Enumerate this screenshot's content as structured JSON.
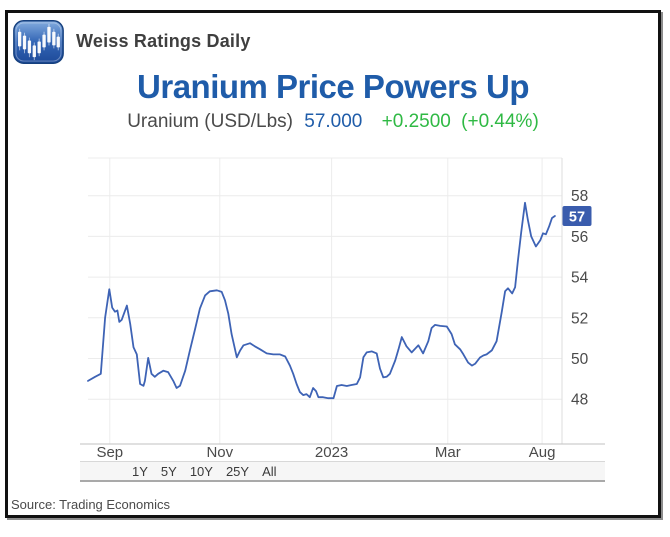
{
  "header": {
    "brand": "Weiss Ratings Daily"
  },
  "title": "Uranium Price Powers Up",
  "quote": {
    "instrument": "Uranium (USD/Lbs)",
    "price": "57.000",
    "change": "+0.2500",
    "change_percent": "(+0.44%)"
  },
  "chart_data": {
    "type": "line",
    "title": "Uranium Price Powers Up",
    "series_name": "Uranium (USD/Lbs)",
    "unit": "USD/Lbs",
    "last_price": 57.0,
    "price_marker": {
      "label": "57",
      "value": 57
    },
    "ylim": [
      45.8,
      59.85
    ],
    "yticks": [
      48,
      50,
      52,
      54,
      56,
      58
    ],
    "grid": true,
    "legend": "none",
    "x_range_note": "Aug 2022 - Aug 2023",
    "xticks": [
      {
        "label": "Sep",
        "pos": 0.046
      },
      {
        "label": "Nov",
        "pos": 0.278
      },
      {
        "label": "2023",
        "pos": 0.514
      },
      {
        "label": "Mar",
        "pos": 0.759
      },
      {
        "label": "Aug",
        "pos": 0.958
      }
    ],
    "points": [
      [
        0.0,
        48.9
      ],
      [
        0.015,
        49.1
      ],
      [
        0.027,
        49.25
      ],
      [
        0.036,
        52.0
      ],
      [
        0.045,
        53.4
      ],
      [
        0.051,
        52.5
      ],
      [
        0.057,
        52.3
      ],
      [
        0.062,
        52.36
      ],
      [
        0.066,
        51.8
      ],
      [
        0.071,
        51.9
      ],
      [
        0.082,
        52.6
      ],
      [
        0.089,
        51.7
      ],
      [
        0.096,
        50.55
      ],
      [
        0.103,
        50.2
      ],
      [
        0.11,
        48.75
      ],
      [
        0.117,
        48.66
      ],
      [
        0.12,
        48.9
      ],
      [
        0.127,
        50.03
      ],
      [
        0.134,
        49.25
      ],
      [
        0.141,
        49.1
      ],
      [
        0.148,
        49.25
      ],
      [
        0.159,
        49.4
      ],
      [
        0.169,
        49.33
      ],
      [
        0.18,
        48.9
      ],
      [
        0.187,
        48.55
      ],
      [
        0.194,
        48.66
      ],
      [
        0.205,
        49.4
      ],
      [
        0.215,
        50.4
      ],
      [
        0.226,
        51.45
      ],
      [
        0.236,
        52.45
      ],
      [
        0.247,
        53.1
      ],
      [
        0.257,
        53.3
      ],
      [
        0.272,
        53.35
      ],
      [
        0.282,
        53.27
      ],
      [
        0.289,
        52.86
      ],
      [
        0.296,
        52.2
      ],
      [
        0.303,
        51.2
      ],
      [
        0.314,
        50.06
      ],
      [
        0.321,
        50.4
      ],
      [
        0.328,
        50.65
      ],
      [
        0.342,
        50.75
      ],
      [
        0.352,
        50.6
      ],
      [
        0.363,
        50.45
      ],
      [
        0.377,
        50.25
      ],
      [
        0.391,
        50.2
      ],
      [
        0.405,
        50.2
      ],
      [
        0.416,
        50.1
      ],
      [
        0.426,
        49.65
      ],
      [
        0.433,
        49.25
      ],
      [
        0.44,
        48.75
      ],
      [
        0.447,
        48.35
      ],
      [
        0.454,
        48.2
      ],
      [
        0.461,
        48.25
      ],
      [
        0.468,
        48.1
      ],
      [
        0.475,
        48.55
      ],
      [
        0.481,
        48.4
      ],
      [
        0.486,
        48.1
      ],
      [
        0.496,
        48.1
      ],
      [
        0.507,
        48.05
      ],
      [
        0.518,
        48.05
      ],
      [
        0.525,
        48.65
      ],
      [
        0.535,
        48.7
      ],
      [
        0.546,
        48.65
      ],
      [
        0.556,
        48.7
      ],
      [
        0.567,
        48.75
      ],
      [
        0.574,
        49.07
      ],
      [
        0.581,
        50.06
      ],
      [
        0.588,
        50.3
      ],
      [
        0.599,
        50.35
      ],
      [
        0.609,
        50.25
      ],
      [
        0.616,
        49.5
      ],
      [
        0.623,
        49.07
      ],
      [
        0.63,
        49.1
      ],
      [
        0.637,
        49.25
      ],
      [
        0.648,
        49.9
      ],
      [
        0.655,
        50.45
      ],
      [
        0.662,
        51.05
      ],
      [
        0.672,
        50.6
      ],
      [
        0.683,
        50.3
      ],
      [
        0.697,
        50.65
      ],
      [
        0.707,
        50.25
      ],
      [
        0.718,
        50.85
      ],
      [
        0.725,
        51.5
      ],
      [
        0.732,
        51.65
      ],
      [
        0.743,
        51.6
      ],
      [
        0.757,
        51.57
      ],
      [
        0.767,
        51.2
      ],
      [
        0.774,
        50.7
      ],
      [
        0.785,
        50.45
      ],
      [
        0.792,
        50.2
      ],
      [
        0.802,
        49.8
      ],
      [
        0.81,
        49.65
      ],
      [
        0.817,
        49.75
      ],
      [
        0.827,
        50.05
      ],
      [
        0.834,
        50.15
      ],
      [
        0.841,
        50.2
      ],
      [
        0.852,
        50.4
      ],
      [
        0.862,
        50.85
      ],
      [
        0.873,
        52.3
      ],
      [
        0.88,
        53.3
      ],
      [
        0.886,
        53.45
      ],
      [
        0.895,
        53.2
      ],
      [
        0.901,
        53.5
      ],
      [
        0.907,
        54.8
      ],
      [
        0.914,
        56.2
      ],
      [
        0.922,
        57.65
      ],
      [
        0.928,
        56.8
      ],
      [
        0.935,
        56.0
      ],
      [
        0.945,
        55.5
      ],
      [
        0.954,
        55.8
      ],
      [
        0.96,
        56.15
      ],
      [
        0.966,
        56.1
      ],
      [
        0.973,
        56.5
      ],
      [
        0.979,
        56.9
      ],
      [
        0.985,
        57.0
      ]
    ]
  },
  "range_selector": {
    "options": [
      "1Y",
      "5Y",
      "10Y",
      "25Y",
      "All"
    ]
  },
  "source": "Source: Trading Economics",
  "colors": {
    "title_blue": "#1F5CA9",
    "price_blue": "#1F5CA9",
    "change_green": "#2FB944",
    "line_blue": "#3E63B5",
    "badge_blue": "#3A5CAD",
    "badge_text": "#FFFFFF",
    "gridline": "#ECECEC",
    "axis_text": "#4A4A4A"
  }
}
